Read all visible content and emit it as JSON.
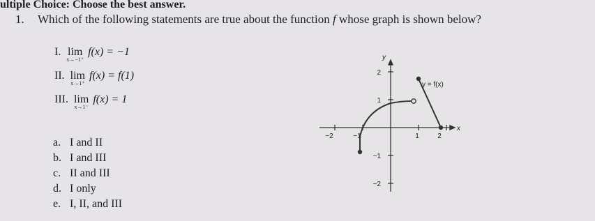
{
  "header": "ultiple Choice: Choose the best answer.",
  "question": {
    "number": "1.",
    "text_before": "Which of the following statements are true about the function",
    "function_name": "f",
    "text_after": "whose graph is shown below?"
  },
  "statements": [
    {
      "numeral": "I.",
      "lim": "lim",
      "approach": "x→−1⁺",
      "expression": "f(x) = −1"
    },
    {
      "numeral": "II.",
      "lim": "lim",
      "approach": "x→1⁺",
      "expression": "f(x) = f(1)"
    },
    {
      "numeral": "III.",
      "lim": "lim",
      "approach": "x→1⁻",
      "expression": "f(x) = 1"
    }
  ],
  "choices": [
    {
      "letter": "a.",
      "text": "I and II"
    },
    {
      "letter": "b.",
      "text": "I and III"
    },
    {
      "letter": "c.",
      "text": "II and III"
    },
    {
      "letter": "d.",
      "text": "I only"
    },
    {
      "letter": "e.",
      "text": "I, II, and III"
    }
  ],
  "graph": {
    "y_axis_label": "y",
    "x_axis_label": "x",
    "curve_label": "y = f(x)",
    "y_tick_labels": [
      "2",
      "1",
      "−1",
      "−2"
    ],
    "x_tick_labels": [
      "−2",
      "−1",
      "1",
      "2"
    ]
  }
}
